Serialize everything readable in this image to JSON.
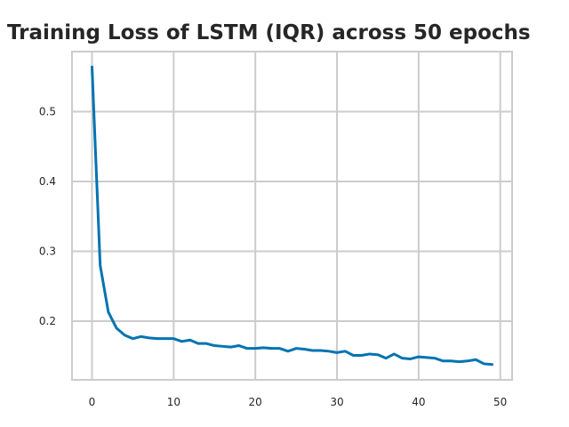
{
  "chart_data": {
    "type": "line",
    "title": "Training Loss of LSTM (IQR) across 50 epochs",
    "xlabel": "",
    "ylabel": "",
    "xlim": [
      -2.45,
      51.45
    ],
    "ylim": [
      0.116,
      0.586
    ],
    "xticks": [
      0,
      10,
      20,
      30,
      40,
      50
    ],
    "yticks": [
      0.2,
      0.3,
      0.4,
      0.5
    ],
    "grid": true,
    "legend": "none",
    "series": [
      {
        "color": "#0173b2",
        "x": [
          0,
          1,
          2,
          3,
          4,
          5,
          6,
          7,
          8,
          9,
          10,
          11,
          12,
          13,
          14,
          15,
          16,
          17,
          18,
          19,
          20,
          21,
          22,
          23,
          24,
          25,
          26,
          27,
          28,
          29,
          30,
          31,
          32,
          33,
          34,
          35,
          36,
          37,
          38,
          39,
          40,
          41,
          42,
          43,
          44,
          45,
          46,
          47,
          48,
          49
        ],
        "values": [
          0.564,
          0.28,
          0.213,
          0.19,
          0.18,
          0.175,
          0.178,
          0.176,
          0.175,
          0.175,
          0.175,
          0.171,
          0.173,
          0.168,
          0.168,
          0.165,
          0.164,
          0.163,
          0.165,
          0.161,
          0.161,
          0.162,
          0.161,
          0.161,
          0.157,
          0.161,
          0.16,
          0.158,
          0.158,
          0.157,
          0.155,
          0.157,
          0.151,
          0.151,
          0.153,
          0.152,
          0.147,
          0.153,
          0.147,
          0.146,
          0.149,
          0.148,
          0.147,
          0.143,
          0.143,
          0.142,
          0.143,
          0.145,
          0.139,
          0.138
        ]
      }
    ]
  }
}
